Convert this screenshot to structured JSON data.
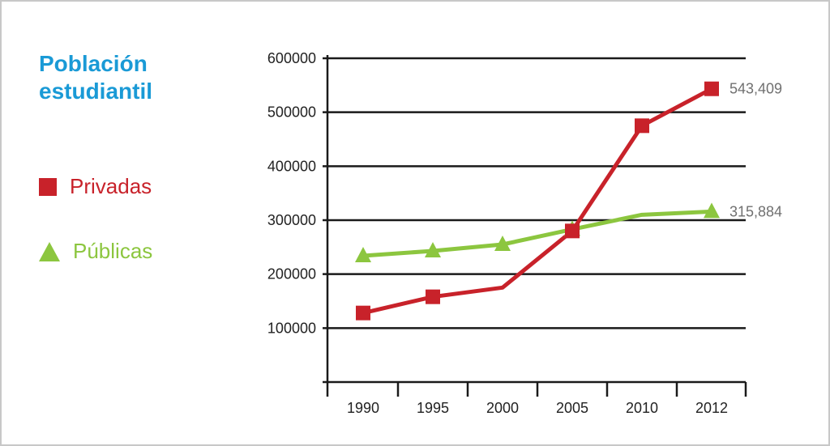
{
  "chart_data": {
    "type": "line",
    "title_lines": [
      "Población",
      "estudiantil"
    ],
    "categories": [
      "1990",
      "1995",
      "2000",
      "2005",
      "2010",
      "2012"
    ],
    "yticks": [
      "100000",
      "200000",
      "300000",
      "400000",
      "500000",
      "600000"
    ],
    "ylim": [
      0,
      600000
    ],
    "grid": true,
    "legend_position": "left",
    "series": [
      {
        "name": "Privadas",
        "color": "#c8222a",
        "marker": "square",
        "values": [
          128000,
          158000,
          175000,
          280000,
          475000,
          543409
        ],
        "end_label": "543,409"
      },
      {
        "name": "Públicas",
        "color": "#8cc63f",
        "marker": "triangle",
        "values": [
          234000,
          243000,
          255000,
          283000,
          310000,
          315884
        ],
        "end_label": "315,884"
      }
    ]
  }
}
